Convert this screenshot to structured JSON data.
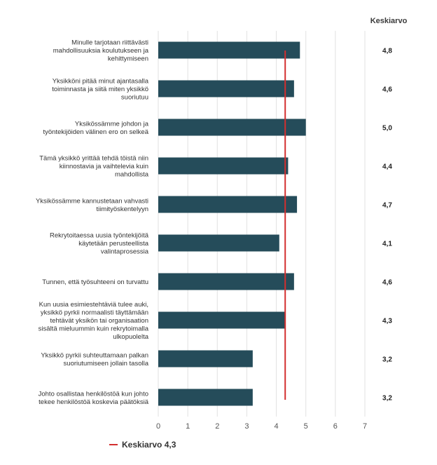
{
  "chart_data": {
    "type": "bar",
    "orientation": "horizontal",
    "categories": [
      "Minulle tarjotaan riittävästi mahdollisuuksia koulutukseen ja kehittymiseen",
      "Yksikköni pitää minut ajantasalla toiminnasta ja siitä miten yksikkö suoriutuu",
      "Yksikössämme johdon ja työntekijöiden välinen ero on selkeä",
      "Tämä yksikkö yrittää tehdä töistä niin kiinnostavia ja vaihtelevia kuin mahdollista",
      "Yksikössämme kannustetaan vahvasti tiimityöskentelyyn",
      "Rekrytoitaessa uusia työntekijöitä käytetään perusteellista valintaprosessia",
      "Tunnen, että työsuhteeni on turvattu",
      "Kun uusia esimiestehtäviä tulee auki, yksikkö pyrkii normaalisti täyttämään tehtävät yksikön tai organisaation sisältä mieluummin kuin rekrytoimalla ulkopuolelta",
      "Yksikkö pyrkii suhteuttamaan palkan suoriutumiseen jollain tasolla",
      "Johto osallistaa henkilöstöä kun johto tekee henkilöstöä koskevia päätöksiä"
    ],
    "label_lines": [
      [
        "Minulle tarjotaan riittävästi",
        "mahdollisuuksia koulutukseen ja",
        "kehittymiseen"
      ],
      [
        "Yksikköni pitää minut ajantasalla",
        "toiminnasta ja siitä miten yksikkö",
        "suoriutuu"
      ],
      [
        "Yksikössämme johdon ja",
        "työntekijöiden välinen ero on selkeä"
      ],
      [
        "Tämä yksikkö yrittää tehdä töistä niin",
        "kiinnostavia ja vaihtelevia kuin",
        "mahdollista"
      ],
      [
        "Yksikössämme kannustetaan vahvasti",
        "tiimityöskentelyyn"
      ],
      [
        "Rekrytoitaessa uusia työntekijöitä",
        "käytetään perusteellista",
        "valintaprosessia"
      ],
      [
        "Tunnen, että työsuhteeni on turvattu"
      ],
      [
        "Kun uusia esimiestehtäviä tulee auki,",
        "yksikkö pyrkii normaalisti täyttämään",
        "tehtävät yksikön tai organisaation",
        "sisältä mieluummin kuin rekrytoimalla",
        "ulkopuolelta"
      ],
      [
        "Yksikkö pyrkii suhteuttamaan palkan",
        "suoriutumiseen jollain tasolla"
      ],
      [
        "Johto osallistaa henkilöstöä kun johto",
        "tekee henkilöstöä koskevia päätöksiä"
      ]
    ],
    "values": [
      4.8,
      4.6,
      5.0,
      4.4,
      4.7,
      4.1,
      4.6,
      4.3,
      3.2,
      3.2
    ],
    "value_labels": [
      "4,8",
      "4,6",
      "5,0",
      "4,4",
      "4,7",
      "4,1",
      "4,6",
      "4,3",
      "3,2",
      "3,2"
    ],
    "xlim": [
      0,
      7
    ],
    "xticks": [
      "0",
      "1",
      "2",
      "3",
      "4",
      "5",
      "6",
      "7"
    ],
    "reference_line": {
      "value": 4.3,
      "label": "Keskiarvo 4,3",
      "color": "#d32f2f"
    },
    "value_column_header": "Keskiarvo",
    "bar_color": "#254c5a",
    "grid": true,
    "legend_position": "bottom-left"
  }
}
